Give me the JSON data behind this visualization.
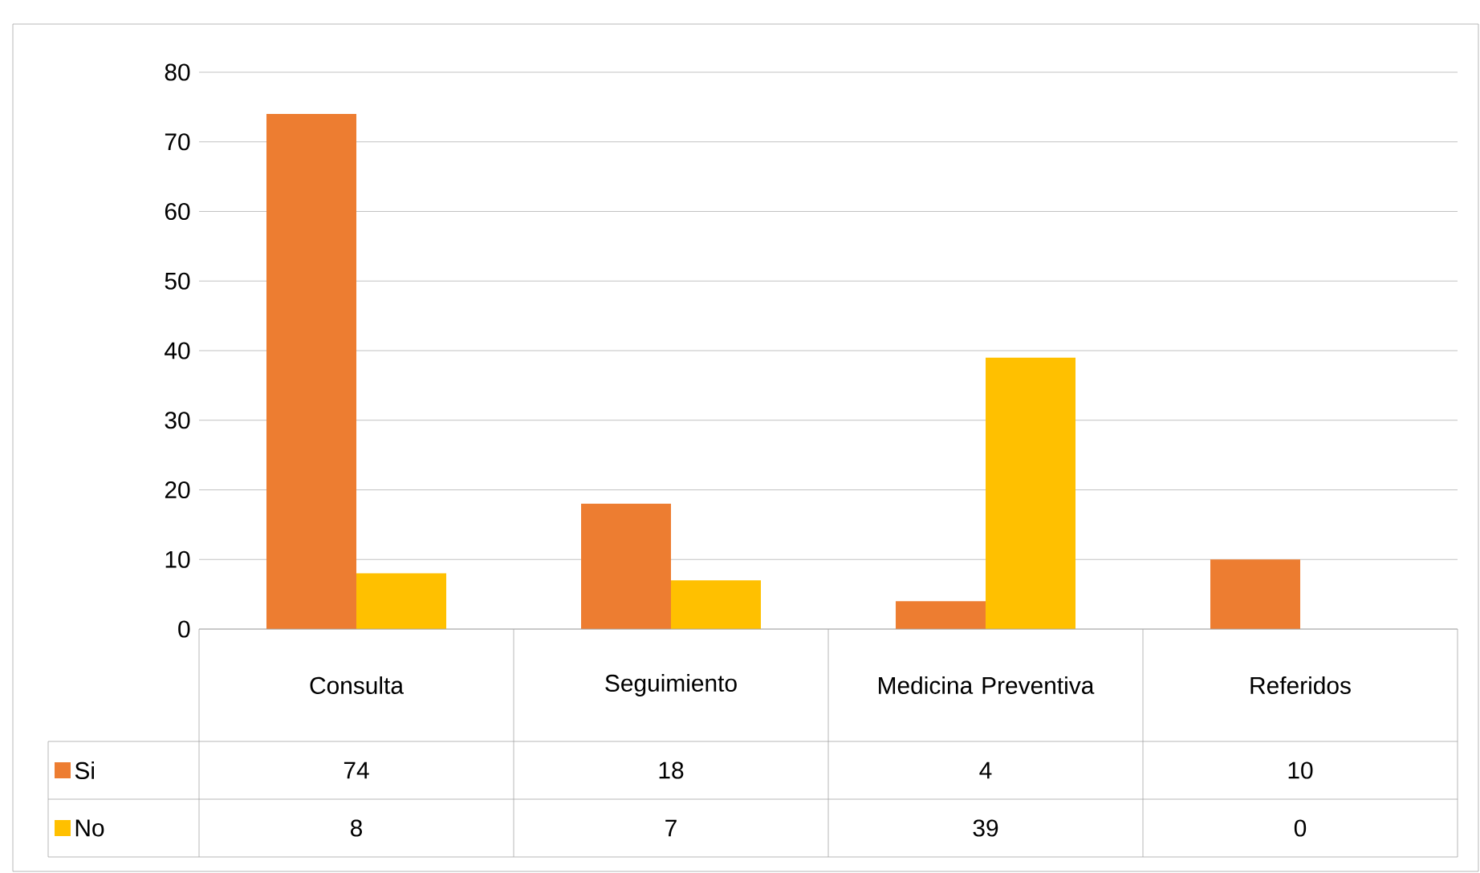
{
  "chart_data": {
    "type": "bar",
    "categories": [
      "Consulta",
      "Seguimiento",
      "Medicina Preventiva",
      "Referidos"
    ],
    "series": [
      {
        "name": "Si",
        "color": "#ed7d31",
        "values": [
          74,
          18,
          4,
          10
        ]
      },
      {
        "name": "No",
        "color": "#ffc000",
        "values": [
          8,
          7,
          39,
          0
        ]
      }
    ],
    "ylim": [
      0,
      80
    ],
    "yticks": [
      0,
      10,
      20,
      30,
      40,
      50,
      60,
      70,
      80
    ],
    "grid": "y",
    "data_labels": true,
    "legend": "bottom"
  }
}
